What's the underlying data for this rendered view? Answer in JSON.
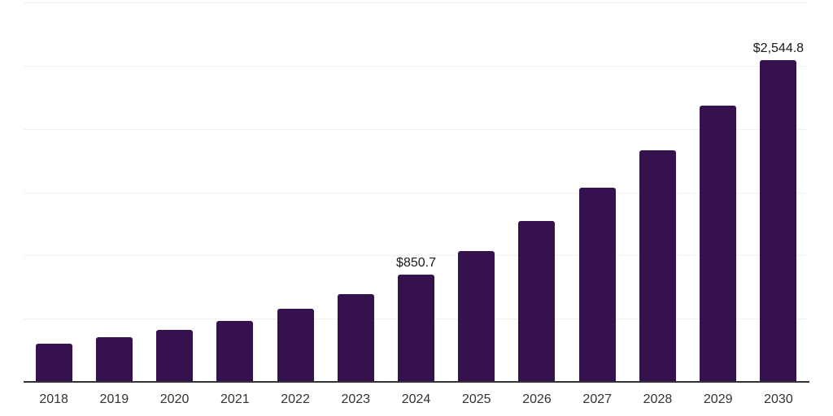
{
  "chart_data": {
    "type": "bar",
    "title": "",
    "xlabel": "",
    "ylabel": "",
    "categories": [
      "2018",
      "2019",
      "2020",
      "2021",
      "2022",
      "2023",
      "2024",
      "2025",
      "2026",
      "2027",
      "2028",
      "2029",
      "2030"
    ],
    "values": [
      304,
      351,
      409,
      482,
      576,
      694,
      850.7,
      1037,
      1272,
      1533,
      1833,
      2182,
      2544.8
    ],
    "bar_labels": [
      "",
      "",
      "",
      "",
      "",
      "",
      "$850.7",
      "",
      "",
      "",
      "",
      "",
      "$2,544.8"
    ],
    "labeled_points": [
      {
        "category": "2024",
        "label": "$850.7",
        "value": 850.7
      },
      {
        "category": "2030",
        "label": "$2,544.8",
        "value": 2544.8
      }
    ],
    "ylim": [
      0,
      3000
    ],
    "gridline_values": [
      500,
      1000,
      1500,
      2000,
      2500,
      3000
    ],
    "grid": "horizontal-only",
    "legend_position": "none",
    "y_axis_tick_labels_visible": false,
    "colors": {
      "bar": "#35114E",
      "grid_line": "#f2f2f2",
      "x_axis_line": "#333333",
      "value_label_text": "#1a1a1a",
      "tick_label_text": "#333333",
      "background": "#ffffff"
    }
  }
}
